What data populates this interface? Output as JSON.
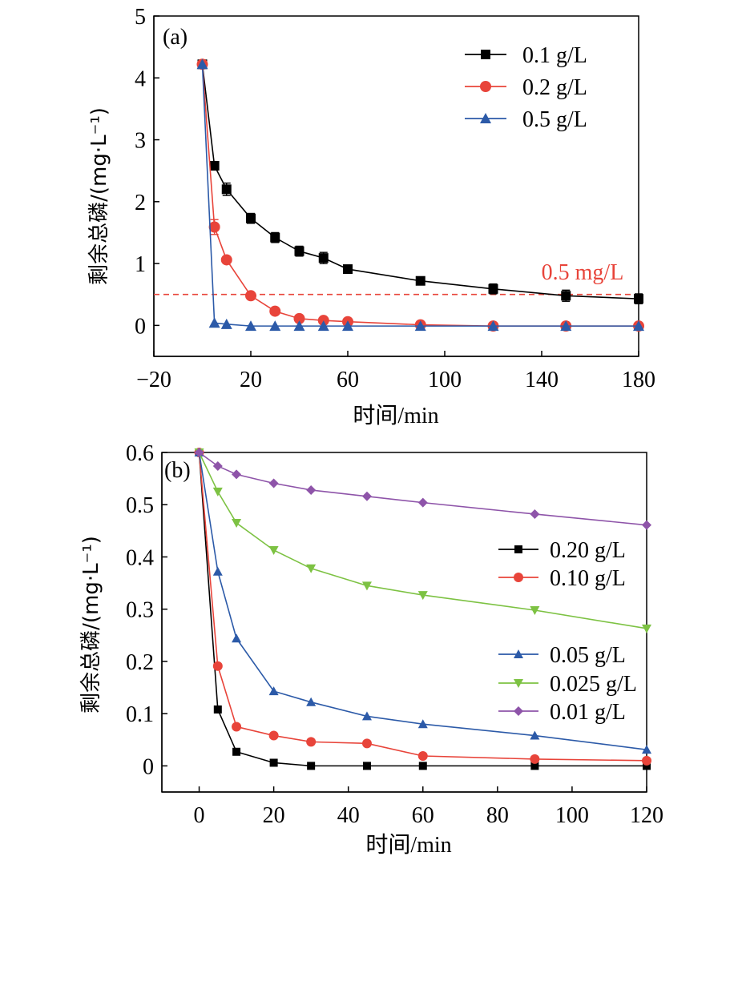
{
  "chart_data": [
    {
      "type": "line",
      "panel_label": "(a)",
      "xlabel": "时间/min",
      "ylabel": "剩余总磷/(mg·L⁻¹)",
      "xlim": [
        -20,
        180
      ],
      "ylim": [
        -0.5,
        5
      ],
      "xticks": [
        "−20",
        "20",
        "60",
        "100",
        "140",
        "180"
      ],
      "yticks": [
        "0",
        "1",
        "2",
        "3",
        "4",
        "5"
      ],
      "legend_position": "top-right",
      "reference_line": {
        "y": 0.5,
        "label": "0.5 mg/L",
        "color": "#e8443a"
      },
      "series": [
        {
          "name": "0.1 g/L",
          "color": "#000000",
          "marker": "square",
          "x": [
            0,
            5,
            10,
            20,
            30,
            40,
            50,
            60,
            90,
            120,
            150,
            180
          ],
          "y": [
            4.22,
            2.58,
            2.2,
            1.73,
            1.42,
            1.2,
            1.09,
            0.91,
            0.72,
            0.59,
            0.48,
            0.43
          ],
          "err": [
            0.04,
            0.05,
            0.1,
            0.08,
            0.08,
            0.08,
            0.09,
            0.04,
            0.06,
            0.08,
            0.09,
            0.08
          ]
        },
        {
          "name": "0.2 g/L",
          "color": "#e8443a",
          "marker": "circle",
          "x": [
            0,
            5,
            10,
            20,
            30,
            40,
            50,
            60,
            90,
            120,
            150,
            180
          ],
          "y": [
            4.22,
            1.59,
            1.06,
            0.48,
            0.23,
            0.11,
            0.08,
            0.06,
            0.01,
            -0.01,
            -0.01,
            -0.01
          ],
          "err": [
            0.04,
            0.12,
            0,
            0,
            0,
            0,
            0,
            0,
            0,
            0,
            0,
            0
          ]
        },
        {
          "name": "0.5 g/L",
          "color": "#2c5aa8",
          "marker": "triangle",
          "x": [
            0,
            5,
            10,
            20,
            30,
            40,
            50,
            60,
            90,
            120,
            150,
            180
          ],
          "y": [
            4.22,
            0.04,
            0.02,
            -0.01,
            -0.01,
            -0.01,
            -0.01,
            -0.01,
            -0.01,
            -0.01,
            -0.01,
            -0.01
          ],
          "err": [
            0,
            0,
            0,
            0,
            0,
            0,
            0,
            0,
            0,
            0,
            0,
            0
          ]
        }
      ]
    },
    {
      "type": "line",
      "panel_label": "(b)",
      "xlabel": "时间/min",
      "ylabel": "剩余总磷/(mg·L⁻¹)",
      "xlim": [
        -10,
        120
      ],
      "ylim": [
        -0.05,
        0.6
      ],
      "xticks": [
        "0",
        "20",
        "40",
        "60",
        "80",
        "100",
        "120"
      ],
      "yticks": [
        "0",
        "0.1",
        "0.2",
        "0.3",
        "0.4",
        "0.5",
        "0.6"
      ],
      "legend_position": "right",
      "series": [
        {
          "name": "0.20 g/L",
          "color": "#000000",
          "marker": "square",
          "x": [
            0,
            5,
            10,
            20,
            30,
            45,
            60,
            90,
            120
          ],
          "y": [
            0.6,
            0.108,
            0.027,
            0.006,
            0.0,
            0.0,
            0.0,
            0.0,
            0.0
          ]
        },
        {
          "name": "0.10 g/L",
          "color": "#e8443a",
          "marker": "circle",
          "x": [
            0,
            5,
            10,
            20,
            30,
            45,
            60,
            90,
            120
          ],
          "y": [
            0.6,
            0.191,
            0.075,
            0.058,
            0.046,
            0.043,
            0.019,
            0.013,
            0.01
          ]
        },
        {
          "name": "0.05 g/L",
          "color": "#2c5aa8",
          "marker": "triangle",
          "x": [
            0,
            5,
            10,
            20,
            30,
            45,
            60,
            90,
            120
          ],
          "y": [
            0.6,
            0.372,
            0.244,
            0.143,
            0.122,
            0.095,
            0.08,
            0.058,
            0.031
          ]
        },
        {
          "name": "0.025 g/L",
          "color": "#7dc243",
          "marker": "triangle-down",
          "x": [
            0,
            5,
            10,
            20,
            30,
            45,
            60,
            90,
            120
          ],
          "y": [
            0.6,
            0.525,
            0.465,
            0.413,
            0.378,
            0.345,
            0.327,
            0.298,
            0.263
          ]
        },
        {
          "name": "0.01 g/L",
          "color": "#8e54a9",
          "marker": "diamond",
          "x": [
            0,
            5,
            10,
            20,
            30,
            45,
            60,
            90,
            120
          ],
          "y": [
            0.6,
            0.574,
            0.558,
            0.541,
            0.528,
            0.516,
            0.504,
            0.482,
            0.461
          ]
        }
      ]
    }
  ]
}
